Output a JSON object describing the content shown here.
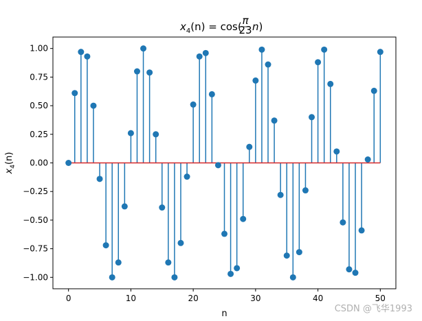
{
  "chart_data": {
    "type": "stem",
    "title": "x_4(n) = cos(π/23 · n)",
    "title_parts": {
      "pre": "x",
      "sub": "4",
      "mid": "(n) = cos(",
      "frac_num": "π",
      "frac_den": "23",
      "post": "n)"
    },
    "xlabel": "n",
    "ylabel_parts": {
      "pre": "x",
      "sub": "4",
      "post": "(n)"
    },
    "xlim": [
      -2.5,
      52.5
    ],
    "ylim": [
      -1.1,
      1.1
    ],
    "xticks": [
      0,
      10,
      20,
      30,
      40,
      50
    ],
    "yticks": [
      -1.0,
      -0.75,
      -0.5,
      -0.25,
      0.0,
      0.25,
      0.5,
      0.75,
      1.0
    ],
    "ytick_labels": [
      "−1.00",
      "−0.75",
      "−0.50",
      "−0.25",
      "0.00",
      "0.25",
      "0.50",
      "0.75",
      "1.00"
    ],
    "xtick_labels": [
      "0",
      "10",
      "20",
      "30",
      "40",
      "50"
    ],
    "grid": false,
    "stem_color": "#1f77b4",
    "baseline_color": "#d62728",
    "x": [
      0,
      1,
      2,
      3,
      4,
      5,
      6,
      7,
      8,
      9,
      10,
      11,
      12,
      13,
      14,
      15,
      16,
      17,
      18,
      19,
      20,
      21,
      22,
      23,
      24,
      25,
      26,
      27,
      28,
      29,
      30,
      31,
      32,
      33,
      34,
      35,
      36,
      37,
      38,
      39,
      40,
      41,
      42,
      43,
      44,
      45,
      46,
      47,
      48,
      49,
      50
    ],
    "values": [
      0.0,
      0.61,
      0.97,
      0.93,
      0.5,
      -0.14,
      -0.72,
      -1.0,
      -0.87,
      -0.38,
      0.26,
      0.8,
      1.0,
      0.79,
      0.25,
      -0.39,
      -0.87,
      -1.0,
      -0.7,
      -0.12,
      0.51,
      0.93,
      0.96,
      0.6,
      -0.02,
      -0.62,
      -0.97,
      -0.92,
      -0.49,
      0.14,
      0.72,
      0.99,
      0.86,
      0.37,
      -0.28,
      -0.81,
      -1.0,
      -0.78,
      -0.24,
      0.4,
      0.88,
      0.99,
      0.69,
      0.1,
      -0.52,
      -0.93,
      -0.96,
      -0.59,
      0.03,
      0.63,
      0.97
    ]
  },
  "watermark": "CSDN @飞华1993"
}
